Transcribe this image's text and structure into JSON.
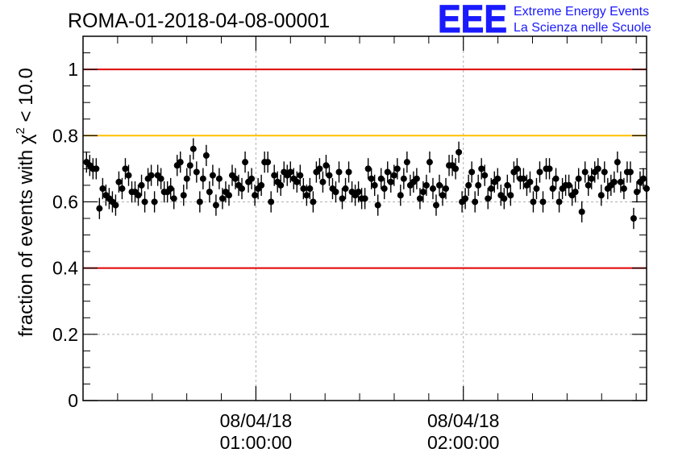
{
  "chart_data": {
    "type": "scatter",
    "title": "ROMA-01-2018-04-08-00001",
    "ylabel_main": "fraction of events with",
    "ylabel_chi": "χ",
    "ylabel_sup": "2",
    "ylabel_tail": "< 10.0",
    "logo": {
      "mark": "EEE",
      "line1": "Extreme Energy Events",
      "line2": "La Scienza nelle Scuole"
    },
    "x_unit": "minutes since 2018-04-08 00:10:00",
    "xlim": [
      0,
      163
    ],
    "ylim": [
      0,
      1.1
    ],
    "yticks": [
      {
        "value": 0,
        "label": "0"
      },
      {
        "value": 0.2,
        "label": "0.2"
      },
      {
        "value": 0.4,
        "label": "0.4"
      },
      {
        "value": 0.6,
        "label": "0.6"
      },
      {
        "value": 0.8,
        "label": "0.8"
      },
      {
        "value": 1,
        "label": "1"
      }
    ],
    "xticks": [
      {
        "value": 50,
        "date": "08/04/18",
        "time": "01:00:00"
      },
      {
        "value": 110,
        "date": "08/04/18",
        "time": "02:00:00"
      }
    ],
    "reference_lines": [
      {
        "y": 1.0,
        "color": "#e00000"
      },
      {
        "y": 0.8,
        "color": "#ffc000"
      },
      {
        "y": 0.4,
        "color": "#e00000"
      }
    ],
    "grid": true,
    "error_bar": 0.032,
    "points_y": [
      0.72,
      0.71,
      0.7,
      0.7,
      0.58,
      0.64,
      0.62,
      0.61,
      0.6,
      0.59,
      0.66,
      0.64,
      0.7,
      0.68,
      0.63,
      0.63,
      0.62,
      0.65,
      0.6,
      0.67,
      0.68,
      0.6,
      0.68,
      0.67,
      0.63,
      0.63,
      0.64,
      0.61,
      0.71,
      0.72,
      0.62,
      0.67,
      0.71,
      0.76,
      0.69,
      0.6,
      0.67,
      0.74,
      0.63,
      0.68,
      0.59,
      0.67,
      0.61,
      0.63,
      0.62,
      0.68,
      0.67,
      0.65,
      0.64,
      0.72,
      0.66,
      0.67,
      0.62,
      0.64,
      0.65,
      0.72,
      0.72,
      0.6,
      0.68,
      0.66,
      0.65,
      0.69,
      0.68,
      0.69,
      0.67,
      0.66,
      0.68,
      0.64,
      0.62,
      0.64,
      0.6,
      0.69,
      0.7,
      0.66,
      0.71,
      0.68,
      0.64,
      0.63,
      0.69,
      0.61,
      0.64,
      0.69,
      0.63,
      0.62,
      0.63,
      0.61,
      0.61,
      0.7,
      0.67,
      0.65,
      0.59,
      0.67,
      0.64,
      0.69,
      0.66,
      0.68,
      0.7,
      0.62,
      0.67,
      0.72,
      0.65,
      0.66,
      0.67,
      0.61,
      0.63,
      0.65,
      0.72,
      0.64,
      0.59,
      0.65,
      0.62,
      0.64,
      0.71,
      0.71,
      0.7,
      0.75,
      0.6,
      0.61,
      0.65,
      0.69,
      0.6,
      0.65,
      0.7,
      0.68,
      0.61,
      0.64,
      0.66,
      0.67,
      0.62,
      0.61,
      0.65,
      0.62,
      0.69,
      0.7,
      0.67,
      0.67,
      0.65,
      0.66,
      0.6,
      0.64,
      0.69,
      0.6,
      0.7,
      0.7,
      0.64,
      0.67,
      0.6,
      0.64,
      0.65,
      0.65,
      0.62,
      0.63,
      0.67,
      0.57,
      0.69,
      0.65,
      0.67,
      0.69,
      0.7,
      0.62,
      0.69,
      0.64,
      0.65,
      0.66,
      0.72,
      0.66,
      0.64,
      0.69,
      0.69,
      0.55,
      0.63,
      0.66,
      0.67,
      0.64
    ]
  }
}
